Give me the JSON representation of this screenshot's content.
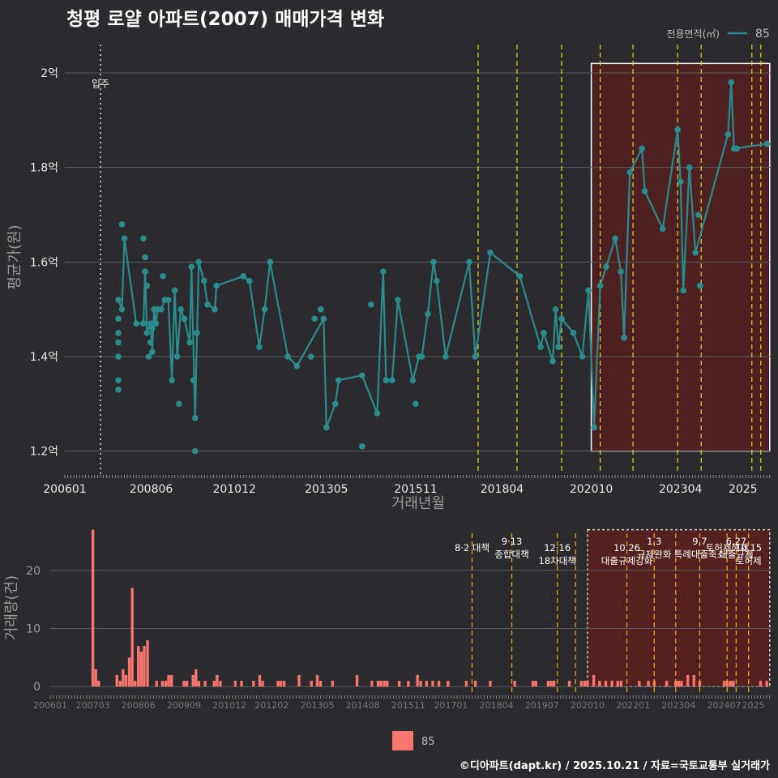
{
  "title": "청평 로얄 아파트(2007) 매매가격 변화",
  "footer": "©디아파트(dapt.kr) / 2025.10.21 / 자료=국토교통부 실거래가",
  "colors": {
    "background": "#2b2b2d",
    "series": "#2a8c8c",
    "bar": "#f8766d",
    "policy_line": "#e6d619",
    "policy_line_bottom": "#e8a010",
    "highlight_fill": "#5a1f1f",
    "move_in_line": "#dddddd",
    "grid": "#5a5a5a"
  },
  "chart_data": [
    {
      "type": "line",
      "name": "price_chart",
      "title": "청평 로얄 아파트(2007) 매매가격 변화",
      "xlabel": "거래년월",
      "ylabel": "평균가(원)",
      "ylim": [
        1.16,
        2.06
      ],
      "xlim": [
        2006.0,
        2025.8
      ],
      "y_ticks": [
        {
          "value": 1.2,
          "label": "1.2억"
        },
        {
          "value": 1.4,
          "label": "1.4억"
        },
        {
          "value": 1.6,
          "label": "1.6억"
        },
        {
          "value": 1.8,
          "label": "1.8억"
        },
        {
          "value": 2.0,
          "label": "2억"
        }
      ],
      "x_ticks": [
        {
          "value": 2006.0,
          "label": "200601"
        },
        {
          "value": 2008.42,
          "label": "200806"
        },
        {
          "value": 2010.75,
          "label": "201012"
        },
        {
          "value": 2013.33,
          "label": "201305"
        },
        {
          "value": 2015.83,
          "label": "201511"
        },
        {
          "value": 2018.25,
          "label": "201804"
        },
        {
          "value": 2020.75,
          "label": "202010"
        },
        {
          "value": 2023.25,
          "label": "202304"
        },
        {
          "value": 2025.0,
          "label": "2025"
        }
      ],
      "legend": {
        "title": "전용면적(㎡)",
        "entries": [
          "85"
        ],
        "position": "top-right"
      },
      "move_in": {
        "x": 2007.0,
        "label": "입주"
      },
      "policy_lines": [
        2017.58,
        2018.67,
        2019.92,
        2021.0,
        2021.92,
        2023.17,
        2023.83,
        2025.25,
        2025.5
      ],
      "highlight": {
        "x0": 2020.75,
        "x1": 2025.75,
        "y0": 1.2,
        "y1": 2.02
      },
      "series": [
        {
          "name": "85",
          "line": [
            [
              2007.5,
              1.52
            ],
            [
              2007.6,
              1.5
            ],
            [
              2007.67,
              1.65
            ],
            [
              2008.0,
              1.47
            ],
            [
              2008.2,
              1.47
            ],
            [
              2008.25,
              1.58
            ],
            [
              2008.3,
              1.45
            ],
            [
              2008.4,
              1.47
            ],
            [
              2008.45,
              1.41
            ],
            [
              2008.5,
              1.5
            ],
            [
              2008.55,
              1.47
            ],
            [
              2008.6,
              1.5
            ],
            [
              2008.7,
              1.5
            ],
            [
              2008.8,
              1.52
            ],
            [
              2008.9,
              1.52
            ],
            [
              2009.0,
              1.35
            ],
            [
              2009.08,
              1.54
            ],
            [
              2009.15,
              1.4
            ],
            [
              2009.25,
              1.5
            ],
            [
              2009.35,
              1.48
            ],
            [
              2009.5,
              1.43
            ],
            [
              2009.55,
              1.59
            ],
            [
              2009.65,
              1.27
            ],
            [
              2009.75,
              1.6
            ],
            [
              2009.9,
              1.56
            ],
            [
              2010.0,
              1.51
            ],
            [
              2010.2,
              1.5
            ],
            [
              2010.25,
              1.55
            ],
            [
              2011.0,
              1.57
            ],
            [
              2011.17,
              1.56
            ],
            [
              2011.45,
              1.42
            ],
            [
              2011.6,
              1.5
            ],
            [
              2011.75,
              1.6
            ],
            [
              2012.25,
              1.4
            ],
            [
              2012.5,
              1.38
            ],
            [
              2013.25,
              1.48
            ],
            [
              2013.33,
              1.25
            ],
            [
              2013.58,
              1.3
            ],
            [
              2013.67,
              1.35
            ],
            [
              2014.33,
              1.36
            ],
            [
              2014.75,
              1.28
            ],
            [
              2014.92,
              1.58
            ],
            [
              2015.0,
              1.35
            ],
            [
              2015.17,
              1.35
            ],
            [
              2015.33,
              1.52
            ],
            [
              2015.75,
              1.35
            ],
            [
              2015.92,
              1.4
            ],
            [
              2016.0,
              1.4
            ],
            [
              2016.17,
              1.49
            ],
            [
              2016.33,
              1.6
            ],
            [
              2016.42,
              1.56
            ],
            [
              2016.67,
              1.4
            ],
            [
              2017.33,
              1.6
            ],
            [
              2017.5,
              1.4
            ],
            [
              2017.92,
              1.62
            ],
            [
              2018.75,
              1.57
            ],
            [
              2019.33,
              1.42
            ],
            [
              2019.42,
              1.45
            ],
            [
              2019.67,
              1.39
            ],
            [
              2019.75,
              1.5
            ],
            [
              2019.83,
              1.42
            ],
            [
              2019.92,
              1.48
            ],
            [
              2020.25,
              1.45
            ],
            [
              2020.5,
              1.4
            ],
            [
              2020.67,
              1.54
            ],
            [
              2020.83,
              1.25
            ],
            [
              2021.0,
              1.55
            ],
            [
              2021.17,
              1.59
            ],
            [
              2021.42,
              1.65
            ],
            [
              2021.58,
              1.58
            ],
            [
              2021.67,
              1.44
            ],
            [
              2021.83,
              1.79
            ],
            [
              2022.17,
              1.84
            ],
            [
              2022.25,
              1.75
            ],
            [
              2022.75,
              1.67
            ],
            [
              2023.17,
              1.88
            ],
            [
              2023.25,
              1.77
            ],
            [
              2023.33,
              1.54
            ],
            [
              2023.5,
              1.8
            ],
            [
              2023.67,
              1.62
            ],
            [
              2024.58,
              1.87
            ],
            [
              2024.67,
              1.98
            ],
            [
              2024.75,
              1.84
            ],
            [
              2025.67,
              1.85
            ]
          ],
          "extra_points": [
            [
              2007.5,
              1.33
            ],
            [
              2007.5,
              1.35
            ],
            [
              2007.5,
              1.4
            ],
            [
              2007.5,
              1.43
            ],
            [
              2007.5,
              1.45
            ],
            [
              2007.5,
              1.48
            ],
            [
              2007.6,
              1.68
            ],
            [
              2008.2,
              1.65
            ],
            [
              2008.25,
              1.61
            ],
            [
              2008.3,
              1.55
            ],
            [
              2008.35,
              1.4
            ],
            [
              2008.4,
              1.43
            ],
            [
              2008.45,
              1.46
            ],
            [
              2008.75,
              1.57
            ],
            [
              2009.2,
              1.3
            ],
            [
              2009.6,
              1.35
            ],
            [
              2009.65,
              1.2
            ],
            [
              2009.7,
              1.45
            ],
            [
              2012.9,
              1.4
            ],
            [
              2013.0,
              1.48
            ],
            [
              2013.17,
              1.5
            ],
            [
              2014.58,
              1.51
            ],
            [
              2014.33,
              1.21
            ],
            [
              2015.83,
              1.3
            ],
            [
              2023.75,
              1.7
            ],
            [
              2023.8,
              1.55
            ],
            [
              2024.83,
              1.84
            ]
          ]
        }
      ]
    },
    {
      "type": "bar",
      "name": "volume_chart",
      "ylabel": "거래량(건)",
      "ylim": [
        -1.5,
        27.5
      ],
      "xlim": [
        2006.0,
        2025.8
      ],
      "y_ticks": [
        {
          "value": 0,
          "label": "0"
        },
        {
          "value": 10,
          "label": "10"
        },
        {
          "value": 20,
          "label": "20"
        }
      ],
      "x_ticks": [
        {
          "value": 2006.0,
          "label": "200601"
        },
        {
          "value": 2007.17,
          "label": "200703"
        },
        {
          "value": 2008.42,
          "label": "200806"
        },
        {
          "value": 2009.67,
          "label": "200909"
        },
        {
          "value": 2010.92,
          "label": "201012"
        },
        {
          "value": 2012.08,
          "label": "201202"
        },
        {
          "value": 2013.33,
          "label": "201305"
        },
        {
          "value": 2014.58,
          "label": "201408"
        },
        {
          "value": 2015.83,
          "label": "201511"
        },
        {
          "value": 2017.0,
          "label": "201701"
        },
        {
          "value": 2018.25,
          "label": "201804"
        },
        {
          "value": 2019.5,
          "label": "201907"
        },
        {
          "value": 2020.75,
          "label": "202010"
        },
        {
          "value": 2022.0,
          "label": "202201"
        },
        {
          "value": 2023.25,
          "label": "202304"
        },
        {
          "value": 2024.5,
          "label": "202407"
        },
        {
          "value": 2025.3,
          "label": "2025"
        }
      ],
      "legend": {
        "entries": [
          "85"
        ],
        "position": "bottom"
      },
      "highlight": {
        "x0": 2020.75,
        "x1": 2025.75,
        "y0": 0,
        "y1": 27
      },
      "policy_lines": [
        {
          "x": 2017.58,
          "labels": [
            "8·2 대책"
          ]
        },
        {
          "x": 2018.67,
          "labels": [
            "9·13",
            "종합대책"
          ]
        },
        {
          "x": 2019.92,
          "labels": [
            "12·16",
            "18차대책"
          ]
        },
        {
          "x": 2020.42,
          "labels": []
        },
        {
          "x": 2021.83,
          "labels": [
            "10.26",
            "대출규제강화"
          ]
        },
        {
          "x": 2022.58,
          "labels": [
            "1.3",
            "규제완화"
          ]
        },
        {
          "x": 2023.17,
          "labels": []
        },
        {
          "x": 2023.83,
          "labels": [
            "9.7",
            "특례대출축소"
          ]
        },
        {
          "x": 2024.58,
          "labels": [
            "토허제해제"
          ]
        },
        {
          "x": 2024.83,
          "labels": [
            "6.27",
            "대출규제"
          ]
        },
        {
          "x": 2025.17,
          "labels": [
            "10.15",
            "토허제"
          ]
        }
      ],
      "bars": [
        [
          2007.17,
          27
        ],
        [
          2007.25,
          3
        ],
        [
          2007.33,
          1
        ],
        [
          2007.83,
          2
        ],
        [
          2007.92,
          1
        ],
        [
          2008.0,
          3
        ],
        [
          2008.08,
          2
        ],
        [
          2008.17,
          5
        ],
        [
          2008.25,
          17
        ],
        [
          2008.33,
          1
        ],
        [
          2008.42,
          7
        ],
        [
          2008.5,
          6
        ],
        [
          2008.58,
          7
        ],
        [
          2008.67,
          8
        ],
        [
          2008.92,
          1
        ],
        [
          2009.08,
          1
        ],
        [
          2009.17,
          1
        ],
        [
          2009.25,
          2
        ],
        [
          2009.33,
          2
        ],
        [
          2009.67,
          1
        ],
        [
          2009.75,
          1
        ],
        [
          2009.92,
          2
        ],
        [
          2010.0,
          3
        ],
        [
          2010.08,
          1
        ],
        [
          2010.25,
          1
        ],
        [
          2010.5,
          1
        ],
        [
          2010.58,
          2
        ],
        [
          2010.67,
          1
        ],
        [
          2011.08,
          1
        ],
        [
          2011.25,
          1
        ],
        [
          2011.58,
          1
        ],
        [
          2011.75,
          2
        ],
        [
          2011.83,
          1
        ],
        [
          2012.25,
          1
        ],
        [
          2012.33,
          1
        ],
        [
          2012.42,
          1
        ],
        [
          2012.83,
          2
        ],
        [
          2013.17,
          1
        ],
        [
          2013.33,
          2
        ],
        [
          2013.42,
          1
        ],
        [
          2013.75,
          1
        ],
        [
          2014.42,
          2
        ],
        [
          2014.83,
          1
        ],
        [
          2015.0,
          1
        ],
        [
          2015.08,
          1
        ],
        [
          2015.17,
          1
        ],
        [
          2015.25,
          1
        ],
        [
          2015.58,
          1
        ],
        [
          2015.83,
          1
        ],
        [
          2016.08,
          2
        ],
        [
          2016.17,
          1
        ],
        [
          2016.33,
          1
        ],
        [
          2016.5,
          1
        ],
        [
          2016.67,
          1
        ],
        [
          2016.92,
          1
        ],
        [
          2017.42,
          1
        ],
        [
          2017.67,
          1
        ],
        [
          2018.08,
          1
        ],
        [
          2018.75,
          1
        ],
        [
          2019.25,
          1
        ],
        [
          2019.33,
          1
        ],
        [
          2019.67,
          1
        ],
        [
          2019.75,
          1
        ],
        [
          2019.83,
          1
        ],
        [
          2020.25,
          1
        ],
        [
          2020.58,
          1
        ],
        [
          2020.67,
          1
        ],
        [
          2020.75,
          1
        ],
        [
          2020.92,
          2
        ],
        [
          2021.08,
          1
        ],
        [
          2021.25,
          1
        ],
        [
          2021.42,
          1
        ],
        [
          2021.58,
          1
        ],
        [
          2021.67,
          1
        ],
        [
          2022.17,
          1
        ],
        [
          2022.42,
          1
        ],
        [
          2022.58,
          1
        ],
        [
          2022.92,
          1
        ],
        [
          2023.17,
          1
        ],
        [
          2023.25,
          1
        ],
        [
          2023.33,
          1
        ],
        [
          2023.5,
          2
        ],
        [
          2023.67,
          2
        ],
        [
          2023.83,
          1
        ],
        [
          2024.5,
          1
        ],
        [
          2024.58,
          1
        ],
        [
          2024.67,
          1
        ],
        [
          2024.75,
          1
        ],
        [
          2025.5,
          1
        ],
        [
          2025.67,
          1
        ]
      ]
    }
  ]
}
